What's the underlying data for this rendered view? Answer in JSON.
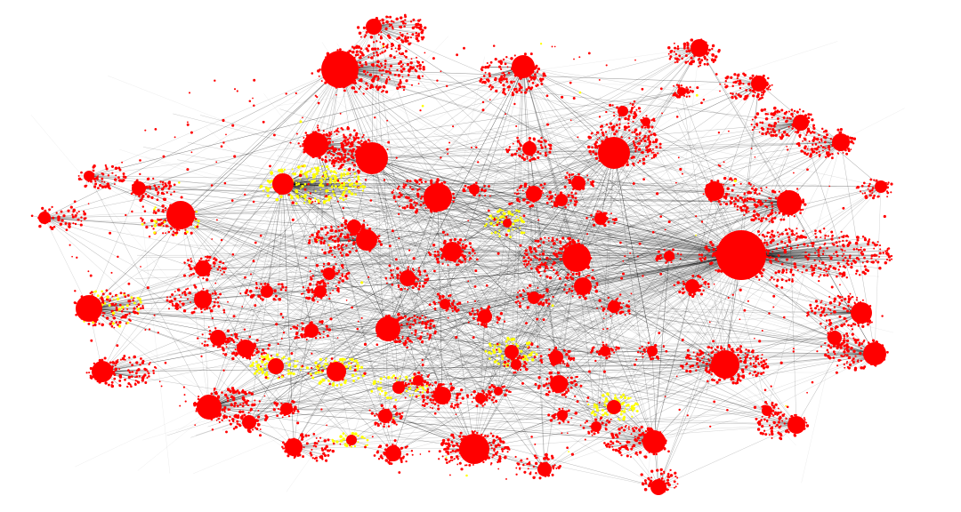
{
  "colors": {
    "background": "#ffffff",
    "node_default": "#ff0000",
    "node_highlight": "#ffff00",
    "edge": "#000000"
  },
  "graph": {
    "layout": "force-directed",
    "labels": "none",
    "legend": "none",
    "clusters_total": 86,
    "highlighted_clusters": 11
  }
}
